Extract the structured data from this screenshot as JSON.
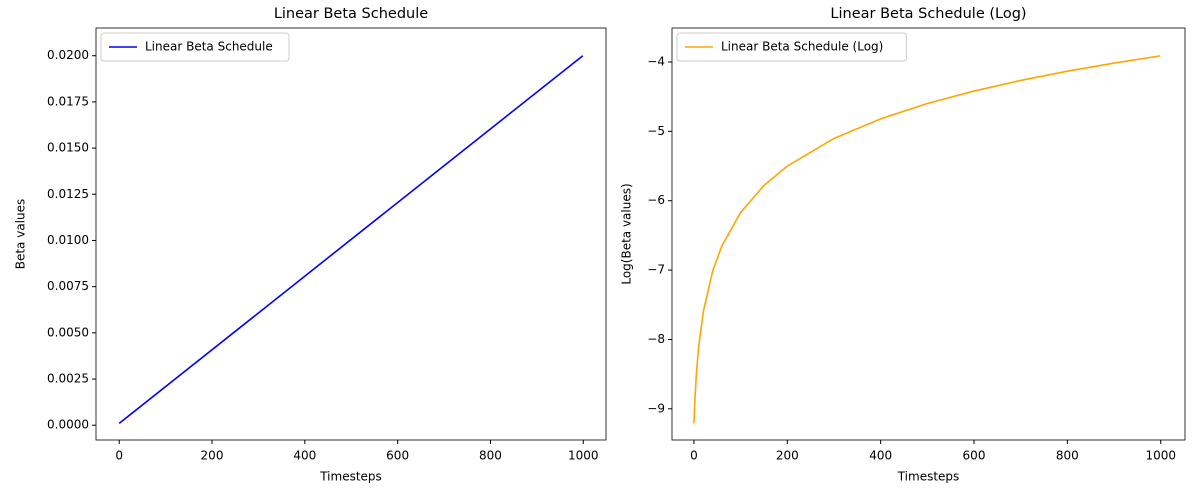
{
  "chart_data": [
    {
      "type": "line",
      "title": "Linear Beta Schedule",
      "x_label": "Timesteps",
      "y_label": "Beta values",
      "x": [
        0,
        999
      ],
      "series": [
        {
          "name": "Linear Beta Schedule",
          "color": "#0000ff",
          "values": [
            0.0001,
            0.02
          ]
        }
      ],
      "xlim": [
        -50,
        1049
      ],
      "xticks": [
        0,
        200,
        400,
        600,
        800,
        1000
      ],
      "ylim": [
        -0.0008,
        0.0215
      ],
      "yticks": [
        {
          "value": 0,
          "label": "0.0000"
        },
        {
          "value": 0.0025,
          "label": "0.0025"
        },
        {
          "value": 0.005,
          "label": "0.0050"
        },
        {
          "value": 0.0075,
          "label": "0.0075"
        },
        {
          "value": 0.01,
          "label": "0.0100"
        },
        {
          "value": 0.0125,
          "label": "0.0125"
        },
        {
          "value": 0.015,
          "label": "0.0150"
        },
        {
          "value": 0.0175,
          "label": "0.0175"
        },
        {
          "value": 0.02,
          "label": "0.0200"
        }
      ],
      "legend": "upper left",
      "grid": false
    },
    {
      "type": "line",
      "title": "Linear Beta Schedule (Log)",
      "x_label": "Timesteps",
      "y_label": "Log(Beta values)",
      "x": [
        0,
        2,
        5,
        10,
        20,
        40,
        60,
        100,
        150,
        200,
        300,
        400,
        500,
        600,
        700,
        800,
        900,
        999
      ],
      "series": [
        {
          "name": "Linear Beta Schedule (Log)",
          "color": "#ffa500",
          "values": [
            -9.21,
            -8.875,
            -8.519,
            -8.114,
            -7.604,
            -7.017,
            -6.649,
            -6.17,
            -5.78,
            -5.501,
            -5.103,
            -4.82,
            -4.599,
            -4.419,
            -4.266,
            -4.133,
            -4.016,
            -3.912
          ]
        }
      ],
      "xlim": [
        -47,
        1052
      ],
      "xticks": [
        0,
        200,
        400,
        600,
        800,
        1000
      ],
      "ylim": [
        -9.45,
        -3.51
      ],
      "yticks": [
        {
          "value": -9,
          "label": "−9"
        },
        {
          "value": -8,
          "label": "−8"
        },
        {
          "value": -7,
          "label": "−7"
        },
        {
          "value": -6,
          "label": "−6"
        },
        {
          "value": -5,
          "label": "−5"
        },
        {
          "value": -4,
          "label": "−4"
        }
      ],
      "legend": "upper left",
      "grid": false
    }
  ]
}
